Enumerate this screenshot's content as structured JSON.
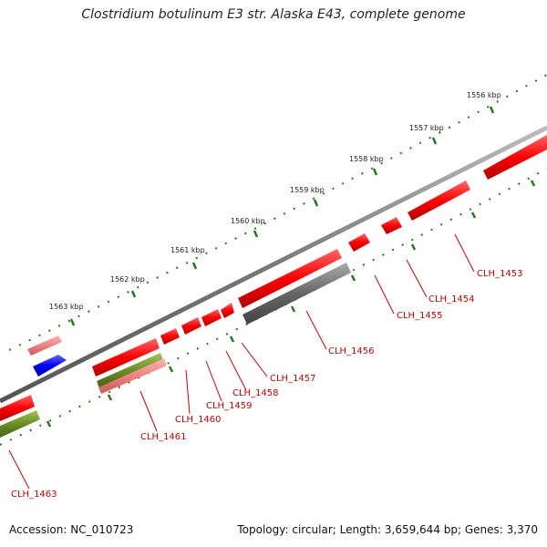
{
  "title": "Clostridium botulinum E3 str. Alaska E43, complete genome",
  "footer": {
    "accession": "Accession: NC_010723",
    "summary": "Topology: circular; Length: 3,659,644 bp; Genes: 3,370"
  },
  "colors": {
    "backbone": "#7a7a7a",
    "ticks": "#1f7a1f",
    "gene_red": "#ff0000",
    "gene_pink": "#f08080",
    "gene_olive": "#6b8e23",
    "gene_blue": "#0000ff",
    "gene_gray": "#666666",
    "label_red": "#cc0000"
  },
  "scale_labels": [
    "1556 kbp",
    "1557 kbp",
    "1558 kbp",
    "1559 kbp",
    "1560 kbp",
    "1561 kbp",
    "1562 kbp",
    "1563 kbp"
  ],
  "gene_labels": [
    "CLH_1453",
    "CLH_1454",
    "CLH_1455",
    "CLH_1456",
    "CLH_1457",
    "CLH_1458",
    "CLH_1459",
    "CLH_1460",
    "CLH_1461",
    "CLH_1463"
  ]
}
